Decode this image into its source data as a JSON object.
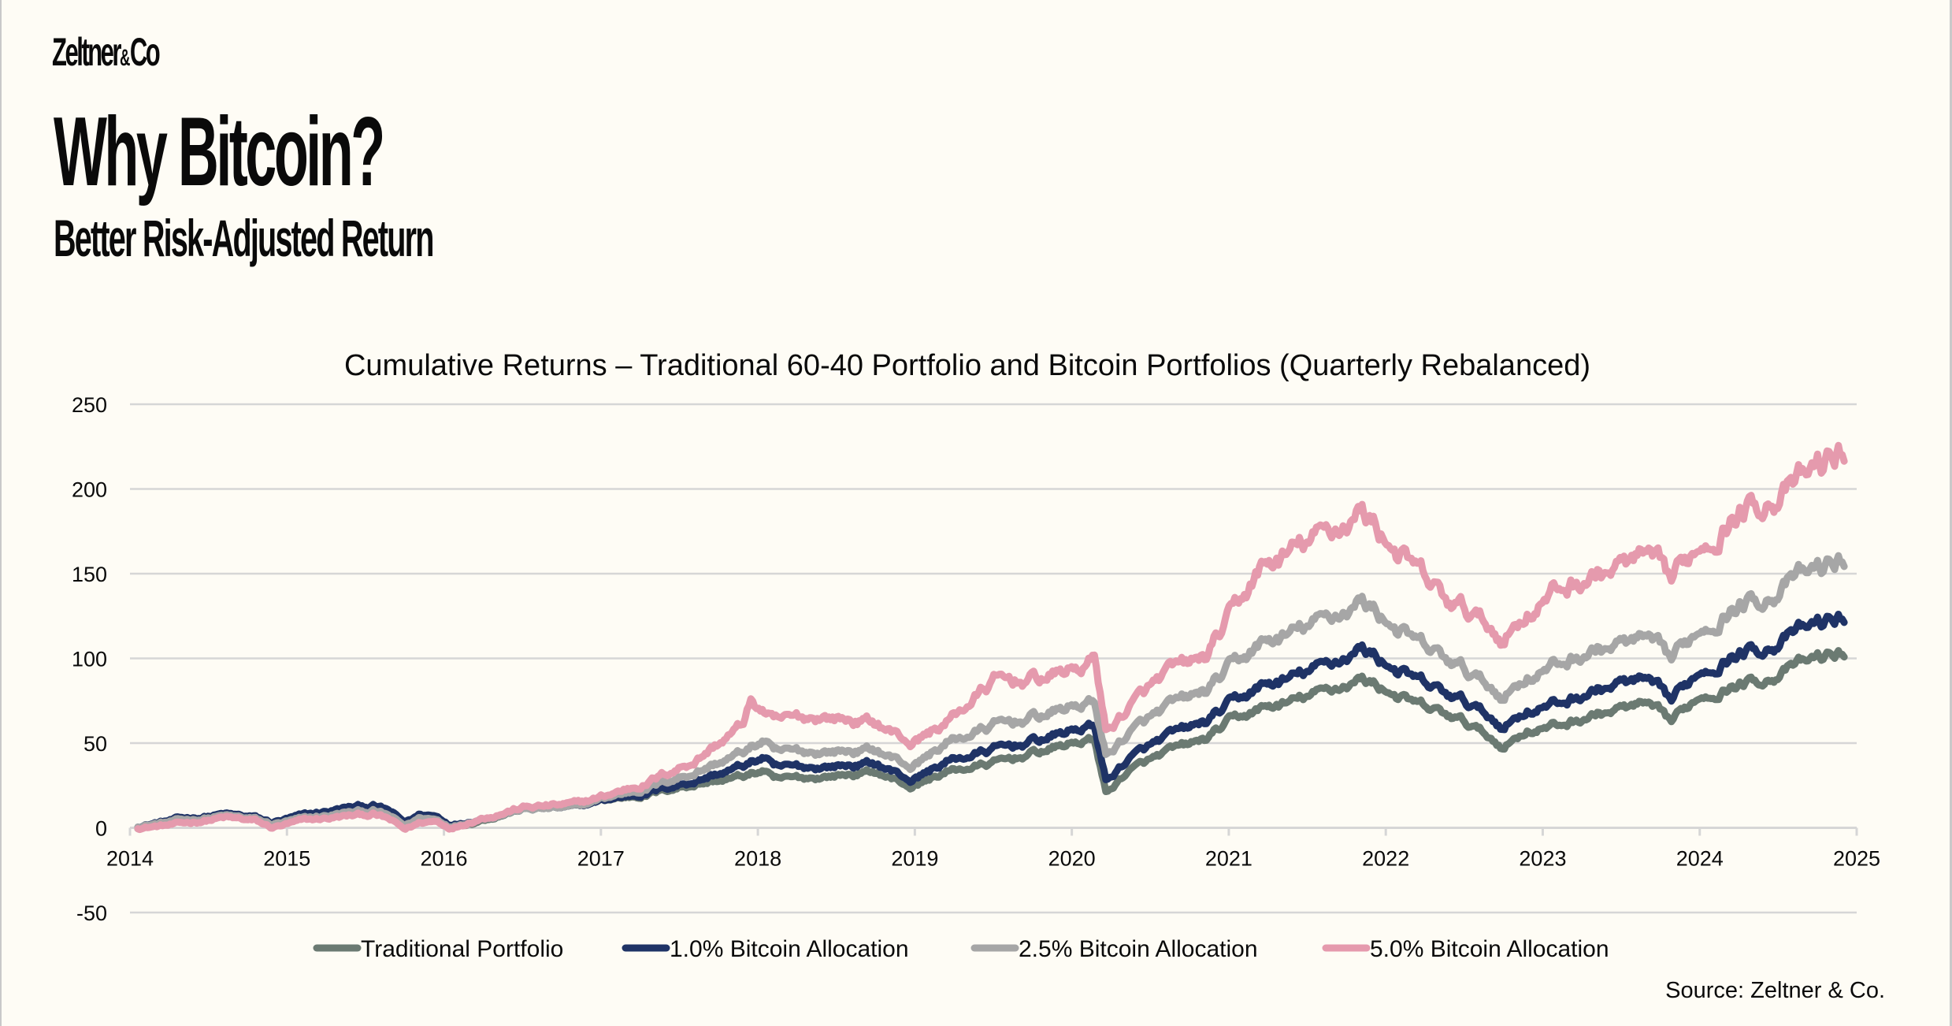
{
  "brand": {
    "name": "Zeltner",
    "amp": "&",
    "suffix": "Co"
  },
  "header": {
    "title": "Why Bitcoin?",
    "subtitle": "Better Risk-Adjusted Return"
  },
  "footer": {
    "source": "Source: Zeltner & Co."
  },
  "chart_data": {
    "type": "line",
    "title": "Cumulative Returns – Traditional 60-40 Portfolio and Bitcoin Portfolios (Quarterly Rebalanced)",
    "xlabel": "",
    "ylabel": "",
    "xlim": [
      2014,
      2025
    ],
    "ylim": [
      -50,
      250
    ],
    "x_ticks": [
      "2014",
      "2015",
      "2016",
      "2017",
      "2018",
      "2019",
      "2020",
      "2021",
      "2022",
      "2023",
      "2024",
      "2025"
    ],
    "y_ticks": [
      "250",
      "200",
      "150",
      "100",
      "50",
      "0",
      "-50"
    ],
    "y_tick_values": [
      250,
      200,
      150,
      100,
      50,
      0,
      -50
    ],
    "grid": "horizontal",
    "legend_position": "bottom",
    "series": [
      {
        "name": "Traditional Portfolio",
        "color": "#6B7A72",
        "points": [
          [
            2014.05,
            0
          ],
          [
            2014.3,
            4
          ],
          [
            2014.6,
            7
          ],
          [
            2014.8,
            5
          ],
          [
            2014.9,
            2
          ],
          [
            2015.1,
            6
          ],
          [
            2015.4,
            11
          ],
          [
            2015.55,
            12
          ],
          [
            2015.65,
            9
          ],
          [
            2015.75,
            2
          ],
          [
            2015.85,
            7
          ],
          [
            2015.95,
            6
          ],
          [
            2016.05,
            1
          ],
          [
            2016.2,
            4
          ],
          [
            2016.5,
            11
          ],
          [
            2016.85,
            12
          ],
          [
            2017.0,
            16
          ],
          [
            2017.3,
            20
          ],
          [
            2017.6,
            26
          ],
          [
            2017.9,
            30
          ],
          [
            2018.05,
            34
          ],
          [
            2018.1,
            28
          ],
          [
            2018.4,
            30
          ],
          [
            2018.75,
            33
          ],
          [
            2018.98,
            24
          ],
          [
            2019.2,
            33
          ],
          [
            2019.5,
            38
          ],
          [
            2019.8,
            45
          ],
          [
            2020.1,
            52
          ],
          [
            2020.15,
            50
          ],
          [
            2020.22,
            20
          ],
          [
            2020.35,
            33
          ],
          [
            2020.6,
            44
          ],
          [
            2020.85,
            52
          ],
          [
            2021.0,
            62
          ],
          [
            2021.2,
            70
          ],
          [
            2021.4,
            74
          ],
          [
            2021.6,
            80
          ],
          [
            2021.85,
            88
          ],
          [
            2022.0,
            82
          ],
          [
            2022.2,
            72
          ],
          [
            2022.4,
            66
          ],
          [
            2022.55,
            60
          ],
          [
            2022.75,
            48
          ],
          [
            2022.9,
            58
          ],
          [
            2023.1,
            60
          ],
          [
            2023.3,
            66
          ],
          [
            2023.5,
            70
          ],
          [
            2023.65,
            72
          ],
          [
            2023.82,
            62
          ],
          [
            2024.0,
            78
          ],
          [
            2024.2,
            84
          ],
          [
            2024.45,
            89
          ],
          [
            2024.6,
            95
          ],
          [
            2024.75,
            100
          ],
          [
            2024.92,
            103
          ]
        ]
      },
      {
        "name": "1.0% Bitcoin Allocation",
        "color": "#1F3366",
        "points": [
          [
            2014.05,
            1
          ],
          [
            2014.3,
            5
          ],
          [
            2014.6,
            8
          ],
          [
            2014.8,
            6
          ],
          [
            2014.9,
            3
          ],
          [
            2015.1,
            7
          ],
          [
            2015.4,
            12
          ],
          [
            2015.55,
            13
          ],
          [
            2015.65,
            10
          ],
          [
            2015.75,
            3
          ],
          [
            2015.85,
            8
          ],
          [
            2015.95,
            7
          ],
          [
            2016.05,
            2
          ],
          [
            2016.2,
            5
          ],
          [
            2016.5,
            11
          ],
          [
            2016.85,
            12
          ],
          [
            2017.0,
            16
          ],
          [
            2017.3,
            21
          ],
          [
            2017.6,
            28
          ],
          [
            2017.9,
            36
          ],
          [
            2018.05,
            42
          ],
          [
            2018.1,
            35
          ],
          [
            2018.4,
            36
          ],
          [
            2018.75,
            38
          ],
          [
            2018.98,
            28
          ],
          [
            2019.2,
            39
          ],
          [
            2019.5,
            46
          ],
          [
            2019.8,
            52
          ],
          [
            2020.1,
            60
          ],
          [
            2020.15,
            58
          ],
          [
            2020.22,
            27
          ],
          [
            2020.35,
            40
          ],
          [
            2020.6,
            53
          ],
          [
            2020.85,
            62
          ],
          [
            2021.0,
            72
          ],
          [
            2021.2,
            83
          ],
          [
            2021.4,
            88
          ],
          [
            2021.6,
            95
          ],
          [
            2021.85,
            106
          ],
          [
            2022.0,
            98
          ],
          [
            2022.2,
            86
          ],
          [
            2022.4,
            78
          ],
          [
            2022.55,
            72
          ],
          [
            2022.75,
            60
          ],
          [
            2022.9,
            70
          ],
          [
            2023.1,
            73
          ],
          [
            2023.3,
            80
          ],
          [
            2023.5,
            85
          ],
          [
            2023.65,
            86
          ],
          [
            2023.82,
            74
          ],
          [
            2024.0,
            93
          ],
          [
            2024.2,
            102
          ],
          [
            2024.45,
            108
          ],
          [
            2024.6,
            114
          ],
          [
            2024.75,
            120
          ],
          [
            2024.92,
            124
          ]
        ]
      },
      {
        "name": "2.5% Bitcoin Allocation",
        "color": "#A6A6A6",
        "points": [
          [
            2014.05,
            1
          ],
          [
            2014.3,
            4
          ],
          [
            2014.6,
            7
          ],
          [
            2014.8,
            5
          ],
          [
            2014.9,
            2
          ],
          [
            2015.1,
            5
          ],
          [
            2015.4,
            9
          ],
          [
            2015.55,
            10
          ],
          [
            2015.65,
            7
          ],
          [
            2015.75,
            1
          ],
          [
            2015.85,
            6
          ],
          [
            2015.95,
            5
          ],
          [
            2016.05,
            1
          ],
          [
            2016.2,
            5
          ],
          [
            2016.5,
            11
          ],
          [
            2016.85,
            12
          ],
          [
            2017.0,
            17
          ],
          [
            2017.3,
            24
          ],
          [
            2017.6,
            33
          ],
          [
            2017.9,
            44
          ],
          [
            2018.05,
            52
          ],
          [
            2018.1,
            44
          ],
          [
            2018.4,
            45
          ],
          [
            2018.75,
            46
          ],
          [
            2018.98,
            36
          ],
          [
            2019.2,
            50
          ],
          [
            2019.5,
            60
          ],
          [
            2019.8,
            66
          ],
          [
            2020.1,
            74
          ],
          [
            2020.15,
            72
          ],
          [
            2020.22,
            42
          ],
          [
            2020.35,
            55
          ],
          [
            2020.6,
            70
          ],
          [
            2020.85,
            80
          ],
          [
            2021.0,
            93
          ],
          [
            2021.2,
            108
          ],
          [
            2021.4,
            114
          ],
          [
            2021.6,
            122
          ],
          [
            2021.85,
            134
          ],
          [
            2022.0,
            124
          ],
          [
            2022.2,
            108
          ],
          [
            2022.4,
            98
          ],
          [
            2022.55,
            90
          ],
          [
            2022.75,
            78
          ],
          [
            2022.9,
            90
          ],
          [
            2023.1,
            96
          ],
          [
            2023.3,
            104
          ],
          [
            2023.5,
            108
          ],
          [
            2023.65,
            110
          ],
          [
            2023.82,
            98
          ],
          [
            2024.0,
            118
          ],
          [
            2024.2,
            130
          ],
          [
            2024.45,
            138
          ],
          [
            2024.6,
            146
          ],
          [
            2024.75,
            152
          ],
          [
            2024.92,
            158
          ]
        ]
      },
      {
        "name": "5.0% Bitcoin Allocation",
        "color": "#E59AAD",
        "points": [
          [
            2014.05,
            0
          ],
          [
            2014.3,
            2
          ],
          [
            2014.6,
            6
          ],
          [
            2014.8,
            4
          ],
          [
            2014.9,
            0
          ],
          [
            2015.1,
            4
          ],
          [
            2015.4,
            7
          ],
          [
            2015.55,
            8
          ],
          [
            2015.65,
            5
          ],
          [
            2015.75,
            -1
          ],
          [
            2015.85,
            3
          ],
          [
            2015.95,
            4
          ],
          [
            2016.05,
            0
          ],
          [
            2016.2,
            5
          ],
          [
            2016.5,
            12
          ],
          [
            2016.85,
            14
          ],
          [
            2017.0,
            18
          ],
          [
            2017.3,
            27
          ],
          [
            2017.6,
            40
          ],
          [
            2017.9,
            60
          ],
          [
            2017.95,
            74
          ],
          [
            2018.05,
            68
          ],
          [
            2018.1,
            62
          ],
          [
            2018.4,
            66
          ],
          [
            2018.75,
            62
          ],
          [
            2018.98,
            50
          ],
          [
            2019.2,
            62
          ],
          [
            2019.5,
            86
          ],
          [
            2019.8,
            88
          ],
          [
            2020.1,
            96
          ],
          [
            2020.15,
            100
          ],
          [
            2020.22,
            56
          ],
          [
            2020.35,
            70
          ],
          [
            2020.6,
            90
          ],
          [
            2020.85,
            100
          ],
          [
            2021.0,
            122
          ],
          [
            2021.2,
            152
          ],
          [
            2021.4,
            162
          ],
          [
            2021.6,
            172
          ],
          [
            2021.85,
            187
          ],
          [
            2022.0,
            172
          ],
          [
            2022.2,
            150
          ],
          [
            2022.4,
            132
          ],
          [
            2022.55,
            126
          ],
          [
            2022.75,
            112
          ],
          [
            2022.9,
            128
          ],
          [
            2023.1,
            140
          ],
          [
            2023.3,
            148
          ],
          [
            2023.5,
            154
          ],
          [
            2023.65,
            158
          ],
          [
            2023.82,
            144
          ],
          [
            2024.0,
            168
          ],
          [
            2024.2,
            184
          ],
          [
            2024.45,
            196
          ],
          [
            2024.6,
            200
          ],
          [
            2024.75,
            212
          ],
          [
            2024.92,
            222
          ]
        ]
      }
    ]
  }
}
